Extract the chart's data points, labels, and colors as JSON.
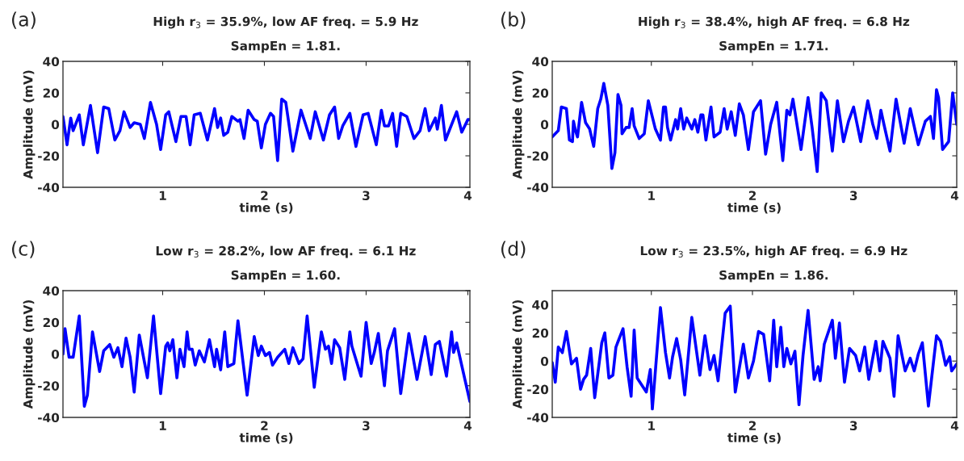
{
  "chart_data": [
    {
      "type": "line",
      "title": "High r$_{3}$ = 35.9%, low AF freq. = 5.9 Hz",
      "subtitle": "SampEn = 1.81.",
      "annotations": [
        "(a)"
      ],
      "xlabel": "time (s)",
      "ylabel": "Amplitude (mV)",
      "xlim": [
        0.02,
        4.02
      ],
      "ylim": [
        -40,
        40
      ],
      "xticks": [
        1,
        2,
        3,
        4
      ],
      "yticks": [
        -40,
        -20,
        0,
        20,
        40
      ],
      "grid": false,
      "legend": false,
      "marker": "none",
      "line_style": "solid",
      "series": [
        {
          "color": "#0000ff",
          "x": [
            0.02,
            0.06,
            0.096,
            0.12,
            0.18,
            0.22,
            0.29,
            0.36,
            0.42,
            0.47,
            0.53,
            0.58,
            0.62,
            0.68,
            0.72,
            0.78,
            0.82,
            0.88,
            0.94,
            0.98,
            1.03,
            1.06,
            1.13,
            1.18,
            1.23,
            1.27,
            1.31,
            1.37,
            1.44,
            1.51,
            1.54,
            1.57,
            1.6,
            1.64,
            1.68,
            1.74,
            1.76,
            1.8,
            1.84,
            1.9,
            1.93,
            1.97,
            2.01,
            2.06,
            2.09,
            2.13,
            2.17,
            2.21,
            2.28,
            2.36,
            2.45,
            2.5,
            2.58,
            2.64,
            2.69,
            2.73,
            2.77,
            2.84,
            2.9,
            2.97,
            3.02,
            3.1,
            3.15,
            3.18,
            3.22,
            3.26,
            3.3,
            3.34,
            3.4,
            3.47,
            3.53,
            3.58,
            3.62,
            3.68,
            3.7,
            3.74,
            3.78,
            3.89,
            3.94,
            4.0,
            4.02
          ],
          "values": [
            5,
            -13,
            4,
            -4,
            6,
            -13,
            12,
            -18,
            11,
            10,
            -10,
            -4,
            8,
            -2,
            1,
            0,
            -9,
            14,
            0,
            -16,
            6,
            8,
            -11,
            5,
            5,
            -13,
            6,
            7,
            -10,
            10,
            -2,
            4,
            -7,
            -5,
            5,
            2,
            3,
            -9,
            9,
            3,
            2,
            -15,
            0,
            7,
            5,
            -23,
            16,
            14,
            -17,
            9,
            -9,
            8,
            -10,
            6,
            11,
            -9,
            -1,
            7,
            -14,
            6,
            7,
            -13,
            9,
            -1,
            -1,
            7,
            -14,
            7,
            5,
            -9,
            -4,
            10,
            -4,
            4,
            -3,
            12,
            -10,
            8,
            -5,
            3,
            3
          ]
        }
      ]
    },
    {
      "type": "line",
      "title": "High r$_{3}$ = 38.4%, high AF freq. = 6.8 Hz",
      "subtitle": "SampEn = 1.71.",
      "annotations": [
        "(b)"
      ],
      "xlabel": "time (s)",
      "ylabel": "Amplitude (mV)",
      "xlim": [
        0.02,
        4.02
      ],
      "ylim": [
        -40,
        40
      ],
      "xticks": [
        1,
        2,
        3,
        4
      ],
      "yticks": [
        -40,
        -20,
        0,
        20,
        40
      ],
      "grid": false,
      "legend": false,
      "marker": "none",
      "line_style": "solid",
      "series": [
        {
          "color": "#0000ff",
          "x": [
            0.02,
            0.08,
            0.11,
            0.16,
            0.19,
            0.22,
            0.23,
            0.25,
            0.27,
            0.31,
            0.35,
            0.39,
            0.43,
            0.47,
            0.5,
            0.53,
            0.57,
            0.61,
            0.64,
            0.67,
            0.7,
            0.71,
            0.75,
            0.78,
            0.81,
            0.83,
            0.88,
            0.93,
            0.97,
            1.04,
            1.09,
            1.12,
            1.14,
            1.16,
            1.19,
            1.24,
            1.26,
            1.29,
            1.32,
            1.35,
            1.4,
            1.43,
            1.46,
            1.49,
            1.51,
            1.54,
            1.59,
            1.62,
            1.68,
            1.72,
            1.75,
            1.79,
            1.83,
            1.87,
            1.91,
            1.96,
            2.01,
            2.08,
            2.13,
            2.18,
            2.24,
            2.3,
            2.34,
            2.37,
            2.4,
            2.48,
            2.55,
            2.59,
            2.64,
            2.68,
            2.73,
            2.79,
            2.84,
            2.9,
            2.95,
            3.0,
            3.07,
            3.14,
            3.19,
            3.23,
            3.27,
            3.3,
            3.36,
            3.42,
            3.5,
            3.56,
            3.64,
            3.71,
            3.76,
            3.79,
            3.82,
            3.84,
            3.88,
            3.94,
            3.98,
            4.02
          ],
          "values": [
            -8,
            -4,
            11,
            10,
            -10,
            -11,
            2,
            -4,
            -8,
            14,
            1,
            -3,
            -14,
            10,
            16,
            26,
            12,
            -28,
            -18,
            19,
            12,
            -6,
            -2,
            -2,
            10,
            -1,
            -9,
            -6,
            15,
            -3,
            -10,
            11,
            11,
            -2,
            -10,
            3,
            -3,
            10,
            -3,
            4,
            -3,
            3,
            -5,
            6,
            6,
            -10,
            11,
            -8,
            -5,
            10,
            -3,
            8,
            -7,
            13,
            6,
            -16,
            8,
            15,
            -19,
            0,
            14,
            -23,
            9,
            6,
            16,
            -16,
            17,
            -2,
            -30,
            20,
            15,
            -17,
            15,
            -11,
            2,
            11,
            -11,
            15,
            0,
            -9,
            9,
            0,
            -17,
            16,
            -12,
            10,
            -13,
            2,
            5,
            -9,
            22,
            17,
            -16,
            -11,
            20,
            0
          ]
        }
      ]
    },
    {
      "type": "line",
      "title": "Low r$_{3}$ = 28.2%, low AF freq. = 6.1 Hz",
      "subtitle": "SampEn = 1.60.",
      "annotations": [
        "(c)"
      ],
      "xlabel": "time (s)",
      "ylabel": "Amplitude (mV)",
      "xlim": [
        0.02,
        4.02
      ],
      "ylim": [
        -40,
        40
      ],
      "xticks": [
        1,
        2,
        3,
        4
      ],
      "yticks": [
        -40,
        -20,
        0,
        20,
        40
      ],
      "grid": false,
      "legend": false,
      "marker": "none",
      "line_style": "solid",
      "series": [
        {
          "color": "#0000ff",
          "x": [
            0.02,
            0.04,
            0.08,
            0.12,
            0.18,
            0.23,
            0.26,
            0.31,
            0.38,
            0.42,
            0.48,
            0.52,
            0.56,
            0.6,
            0.64,
            0.68,
            0.72,
            0.77,
            0.85,
            0.91,
            0.98,
            1.03,
            1.05,
            1.07,
            1.1,
            1.14,
            1.17,
            1.21,
            1.24,
            1.26,
            1.29,
            1.32,
            1.36,
            1.41,
            1.46,
            1.51,
            1.53,
            1.57,
            1.61,
            1.64,
            1.7,
            1.74,
            1.83,
            1.9,
            1.94,
            1.97,
            2.01,
            2.05,
            2.08,
            2.13,
            2.2,
            2.24,
            2.28,
            2.34,
            2.38,
            2.42,
            2.49,
            2.56,
            2.6,
            2.63,
            2.66,
            2.69,
            2.74,
            2.79,
            2.84,
            2.86,
            2.95,
            3.0,
            3.05,
            3.08,
            3.12,
            3.18,
            3.21,
            3.28,
            3.34,
            3.42,
            3.5,
            3.58,
            3.64,
            3.68,
            3.72,
            3.79,
            3.84,
            3.86,
            3.89,
            4.02
          ],
          "values": [
            0,
            16,
            -2,
            -2,
            24,
            -33,
            -26,
            14,
            -11,
            2,
            6,
            -2,
            4,
            -8,
            10,
            -2,
            -24,
            12,
            -15,
            24,
            -25,
            5,
            7,
            2,
            9,
            -15,
            3,
            -8,
            14,
            3,
            3,
            -7,
            2,
            -5,
            9,
            -8,
            3,
            -10,
            14,
            -8,
            -6,
            21,
            -26,
            11,
            -1,
            5,
            -1,
            1,
            -7,
            -2,
            3,
            -6,
            4,
            -6,
            -3,
            24,
            -21,
            14,
            3,
            5,
            -6,
            9,
            4,
            -16,
            14,
            5,
            -14,
            20,
            -6,
            1,
            13,
            -20,
            2,
            16,
            -25,
            13,
            -16,
            11,
            -13,
            6,
            8,
            -14,
            14,
            1,
            7,
            -30
          ]
        }
      ]
    },
    {
      "type": "line",
      "title": "Low r$_{3}$ = 23.5%, high AF freq. = 6.9 Hz",
      "subtitle": "SampEn = 1.86.",
      "annotations": [
        "(d)"
      ],
      "xlabel": "time (s)",
      "ylabel": "Amplitude (mV)",
      "xlim": [
        0.02,
        4.02
      ],
      "ylim": [
        -40,
        50
      ],
      "xticks": [
        1,
        2,
        3,
        4
      ],
      "yticks": [
        -40,
        -20,
        0,
        20,
        40
      ],
      "grid": false,
      "legend": false,
      "marker": "none",
      "line_style": "solid",
      "series": [
        {
          "color": "#0000ff",
          "x": [
            0.02,
            0.05,
            0.08,
            0.12,
            0.16,
            0.21,
            0.26,
            0.3,
            0.33,
            0.36,
            0.4,
            0.44,
            0.48,
            0.51,
            0.54,
            0.58,
            0.62,
            0.65,
            0.69,
            0.72,
            0.76,
            0.8,
            0.83,
            0.86,
            0.9,
            0.95,
            0.99,
            1.01,
            1.09,
            1.14,
            1.18,
            1.21,
            1.25,
            1.29,
            1.33,
            1.4,
            1.48,
            1.53,
            1.58,
            1.62,
            1.66,
            1.7,
            1.73,
            1.78,
            1.83,
            1.91,
            1.96,
            2.01,
            2.06,
            2.11,
            2.13,
            2.17,
            2.21,
            2.24,
            2.28,
            2.31,
            2.34,
            2.38,
            2.42,
            2.46,
            2.5,
            2.55,
            2.61,
            2.65,
            2.67,
            2.71,
            2.75,
            2.79,
            2.82,
            2.86,
            2.91,
            2.96,
            3.02,
            3.06,
            3.11,
            3.15,
            3.22,
            3.26,
            3.29,
            3.36,
            3.4,
            3.44,
            3.51,
            3.56,
            3.6,
            3.64,
            3.68,
            3.74,
            3.82,
            3.86,
            3.91,
            3.95,
            3.97,
            4.02
          ],
          "values": [
            -1,
            -15,
            10,
            6,
            21,
            -2,
            2,
            -20,
            -13,
            -10,
            9,
            -26,
            null,
            13,
            20,
            -12,
            -10,
            10,
            null,
            23,
            -4,
            -25,
            22,
            -12,
            null,
            -22,
            -6,
            -34,
            38,
            6,
            -12,
            3,
            16,
            1,
            -24,
            31,
            -10,
            18,
            -6,
            4,
            -14,
            null,
            34,
            39,
            -22,
            12,
            -12,
            0,
            21,
            19,
            null,
            -14,
            29,
            -4,
            24,
            -4,
            9,
            -2,
            7,
            -31,
            4,
            36,
            -13,
            -4,
            -14,
            12,
            null,
            29,
            2,
            27,
            -15,
            9,
            4,
            -7,
            10,
            -13,
            14,
            -7,
            14,
            2,
            -25,
            18,
            -7,
            2,
            -7,
            5,
            13,
            -32,
            18,
            14,
            -3,
            3,
            -7,
            -2
          ]
        }
      ]
    }
  ]
}
